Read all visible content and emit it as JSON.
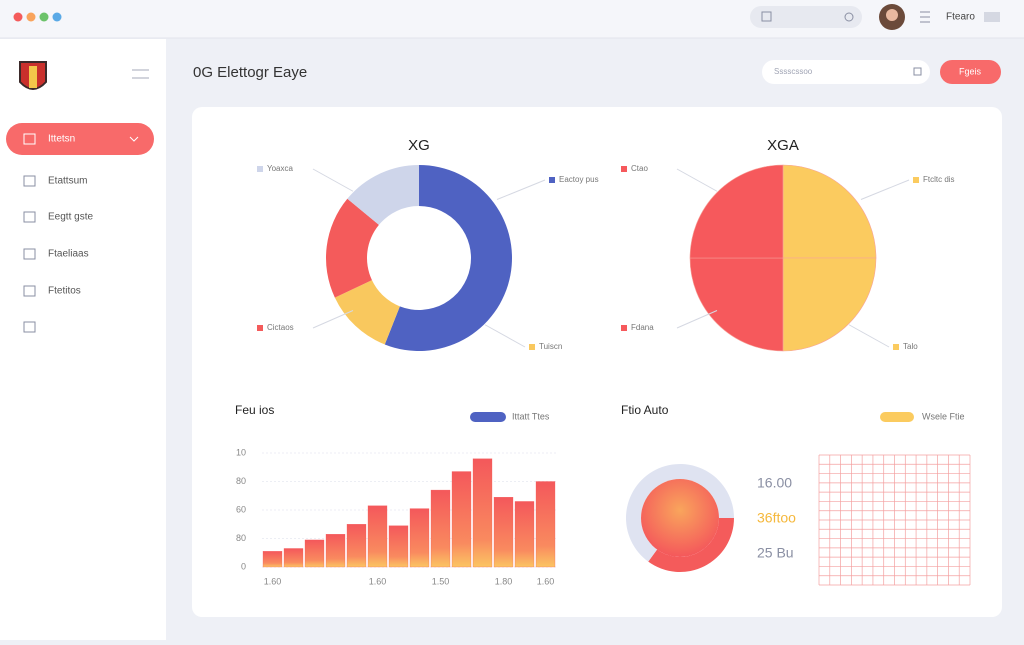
{
  "window": {
    "user": "Ftearo"
  },
  "sidebar": {
    "menu": [
      "Ittetsn",
      "Etattsum",
      "Eegtt gste",
      "Ftaeliaas",
      "Ftetitos"
    ]
  },
  "header": {
    "title": "0G Elettogr Eaye",
    "search": "Sssscssoo",
    "button": "Fgeis"
  },
  "chart_data": [
    {
      "type": "donut",
      "title": "XG",
      "categories": [
        "Eactoy pus",
        "Tuiscn",
        "Cictaos",
        "Yoaxca"
      ],
      "values": [
        56,
        12,
        18,
        14
      ],
      "colors": [
        "#4f62c2",
        "#f9c85e",
        "#f45b5b",
        "#ced5ea"
      ]
    },
    {
      "type": "pie",
      "title": "XGA",
      "categories": [
        "Ftcltc dis",
        "Talo",
        "Fdana",
        "Ctao"
      ],
      "values": [
        25,
        25,
        25,
        25
      ],
      "colors": [
        "#fbcb5f",
        "#fbcb5f",
        "#f6595c",
        "#f6595c"
      ]
    },
    {
      "type": "bar",
      "title": "Feu ios",
      "categories": [
        "1.60",
        null,
        null,
        null,
        null,
        "1.60",
        null,
        null,
        "1.50",
        null,
        null,
        "1.80",
        null,
        "1.60"
      ],
      "series": [
        {
          "name": "Ittatt Ttes",
          "color": "#f45b5b",
          "values": [
            11,
            13,
            19,
            23,
            30,
            43,
            29,
            41,
            54,
            67,
            76,
            49,
            46,
            60
          ]
        }
      ],
      "ylim": [
        0,
        80
      ],
      "yticks": [
        0,
        {
          "value": 20,
          "label": "80"
        },
        {
          "value": 40,
          "label": "60"
        },
        {
          "value": 60,
          "label": "80"
        },
        {
          "value": 80,
          "label": "10"
        }
      ],
      "grid": true
    },
    {
      "type": "gauge",
      "title": "Ftio Auto",
      "series": [
        {
          "name": "Wsele Ftie",
          "color": "#fbcb5f"
        }
      ],
      "values": [
        35,
        65
      ],
      "colors": [
        "#f45b5b",
        "#dfe3f1"
      ],
      "stats": [
        "16.00",
        "36ftoo",
        "25 Bu"
      ]
    }
  ]
}
